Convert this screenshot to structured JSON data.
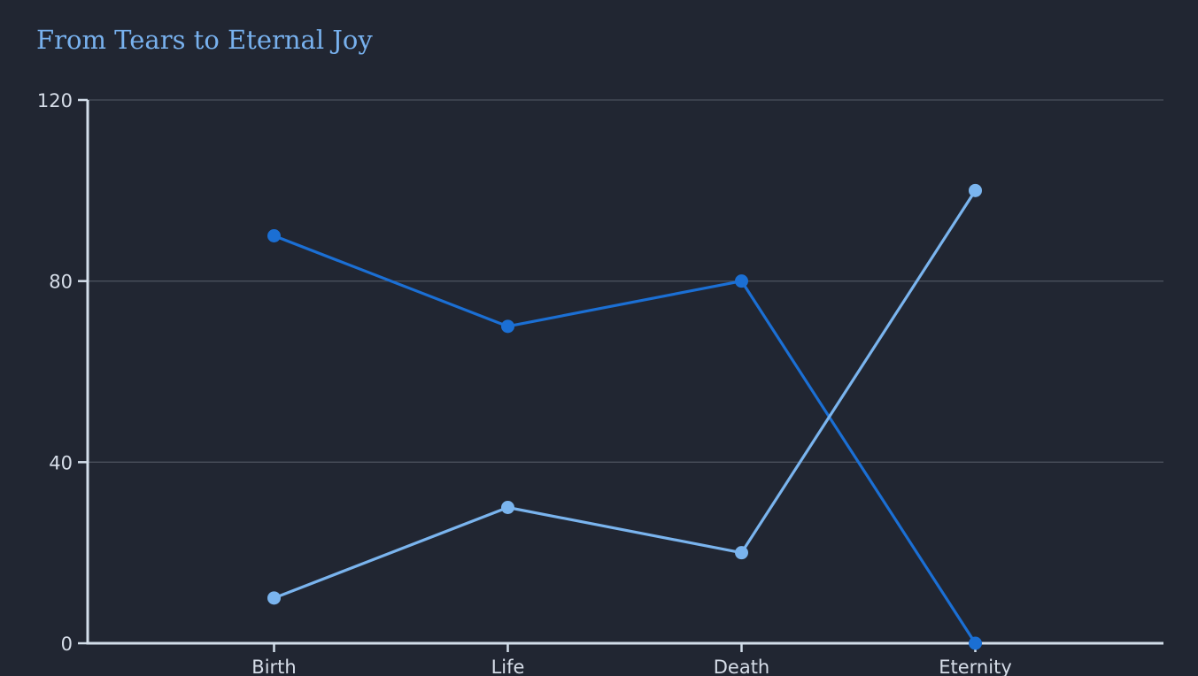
{
  "chart_data": {
    "type": "line",
    "title": "From Tears to Eternal Joy",
    "xlabel": "",
    "ylabel": "",
    "categories": [
      "Birth",
      "Life",
      "Death",
      "Eternity"
    ],
    "ylim": [
      0,
      120
    ],
    "yticks": [
      0,
      40,
      80,
      120
    ],
    "grid": true,
    "legend": "none",
    "series": [
      {
        "values": [
          90,
          70,
          80,
          0
        ],
        "color": "#1b6fd4"
      },
      {
        "values": [
          10,
          30,
          20,
          100
        ],
        "color": "#7ab4ee"
      }
    ]
  },
  "colors": {
    "background": "#212632",
    "title": "#78b1ee",
    "axis": "#d3deea",
    "grid": "#4a505c",
    "tick_text": "#d6dde8"
  }
}
